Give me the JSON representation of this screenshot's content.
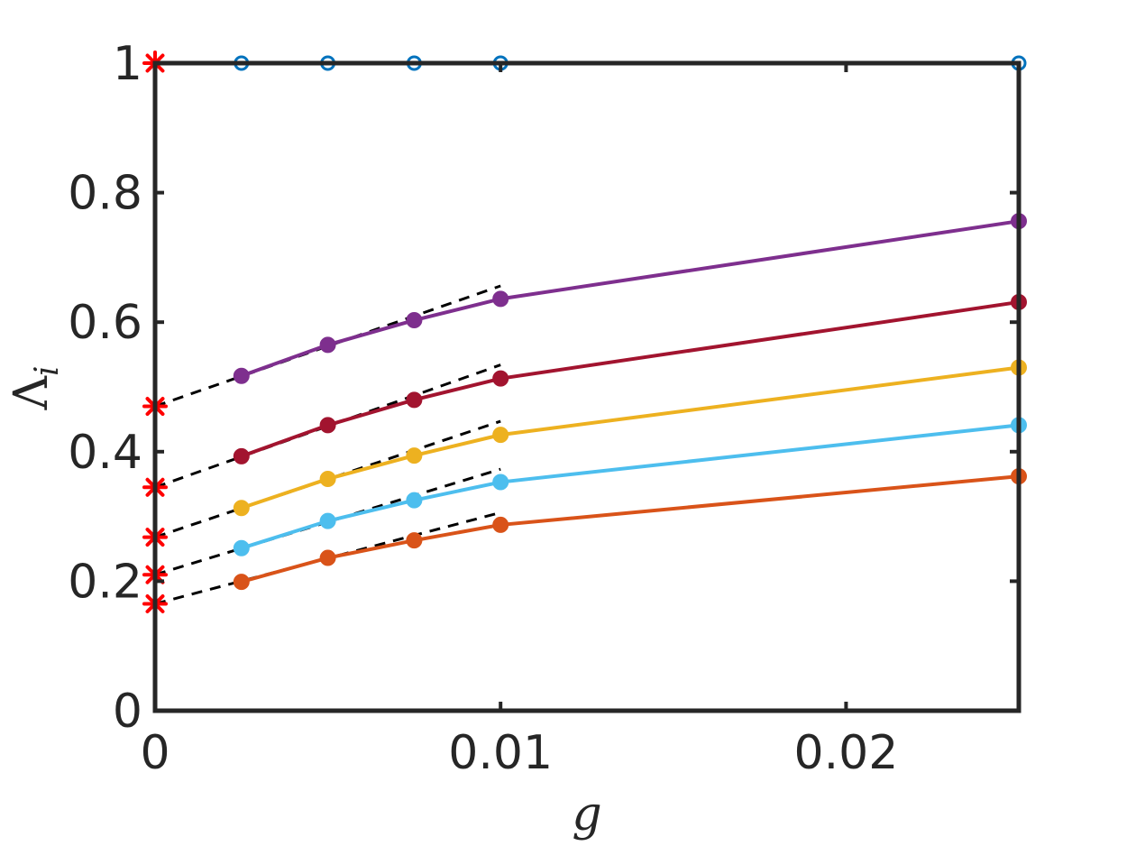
{
  "chart_data": {
    "type": "line",
    "xlabel": "g",
    "ylabel": "Λ_i",
    "xlim": [
      0,
      0.025
    ],
    "ylim": [
      0,
      1
    ],
    "xticks": [
      0,
      0.01,
      0.02
    ],
    "xtick_labels": [
      "0",
      "0.01",
      "0.02"
    ],
    "yticks": [
      0,
      0.2,
      0.4,
      0.6,
      0.8,
      1
    ],
    "ytick_labels": [
      "0",
      "0.2",
      "0.4",
      "0.6",
      "0.8",
      "1"
    ],
    "grid": false,
    "series": [
      {
        "color": "#0072BD",
        "marker": "open-circle",
        "x": [
          0.0025,
          0.005,
          0.0075,
          0.01,
          0.025
        ],
        "y": [
          1.0,
          1.0,
          1.0,
          1.0,
          1.0
        ]
      },
      {
        "color": "#7E2F8E",
        "marker": "filled-circle",
        "x": [
          0.0025,
          0.005,
          0.0075,
          0.01,
          0.025
        ],
        "y": [
          0.517,
          0.565,
          0.603,
          0.636,
          0.756
        ]
      },
      {
        "color": "#A2142F",
        "marker": "filled-circle",
        "x": [
          0.0025,
          0.005,
          0.0075,
          0.01,
          0.025
        ],
        "y": [
          0.393,
          0.441,
          0.48,
          0.513,
          0.631
        ]
      },
      {
        "color": "#EDB120",
        "marker": "filled-circle",
        "x": [
          0.0025,
          0.005,
          0.0075,
          0.01,
          0.025
        ],
        "y": [
          0.313,
          0.358,
          0.394,
          0.426,
          0.53
        ]
      },
      {
        "color": "#4DBEEE",
        "marker": "filled-circle",
        "x": [
          0.0025,
          0.005,
          0.0075,
          0.01,
          0.025
        ],
        "y": [
          0.251,
          0.293,
          0.325,
          0.353,
          0.441
        ]
      },
      {
        "color": "#D95319",
        "marker": "filled-circle",
        "x": [
          0.0025,
          0.005,
          0.0075,
          0.01,
          0.025
        ],
        "y": [
          0.199,
          0.236,
          0.263,
          0.287,
          0.362
        ]
      }
    ],
    "fit_lines": [
      {
        "style": "dashed",
        "color": "#000000",
        "x": [
          0,
          0.01
        ],
        "y": [
          1.0,
          1.0
        ]
      },
      {
        "style": "dashed",
        "color": "#000000",
        "x": [
          0,
          0.01
        ],
        "y": [
          0.47,
          0.656
        ]
      },
      {
        "style": "dashed",
        "color": "#000000",
        "x": [
          0,
          0.01
        ],
        "y": [
          0.345,
          0.534
        ]
      },
      {
        "style": "dashed",
        "color": "#000000",
        "x": [
          0,
          0.01
        ],
        "y": [
          0.268,
          0.447
        ]
      },
      {
        "style": "dashed",
        "color": "#000000",
        "x": [
          0,
          0.01
        ],
        "y": [
          0.21,
          0.373
        ]
      },
      {
        "style": "dashed",
        "color": "#000000",
        "x": [
          0,
          0.01
        ],
        "y": [
          0.165,
          0.306
        ]
      }
    ],
    "extrapolated_points": {
      "color": "#FF0000",
      "marker": "asterisk",
      "x": [
        0,
        0,
        0,
        0,
        0,
        0
      ],
      "y": [
        1.0,
        0.47,
        0.345,
        0.268,
        0.21,
        0.165
      ]
    }
  }
}
